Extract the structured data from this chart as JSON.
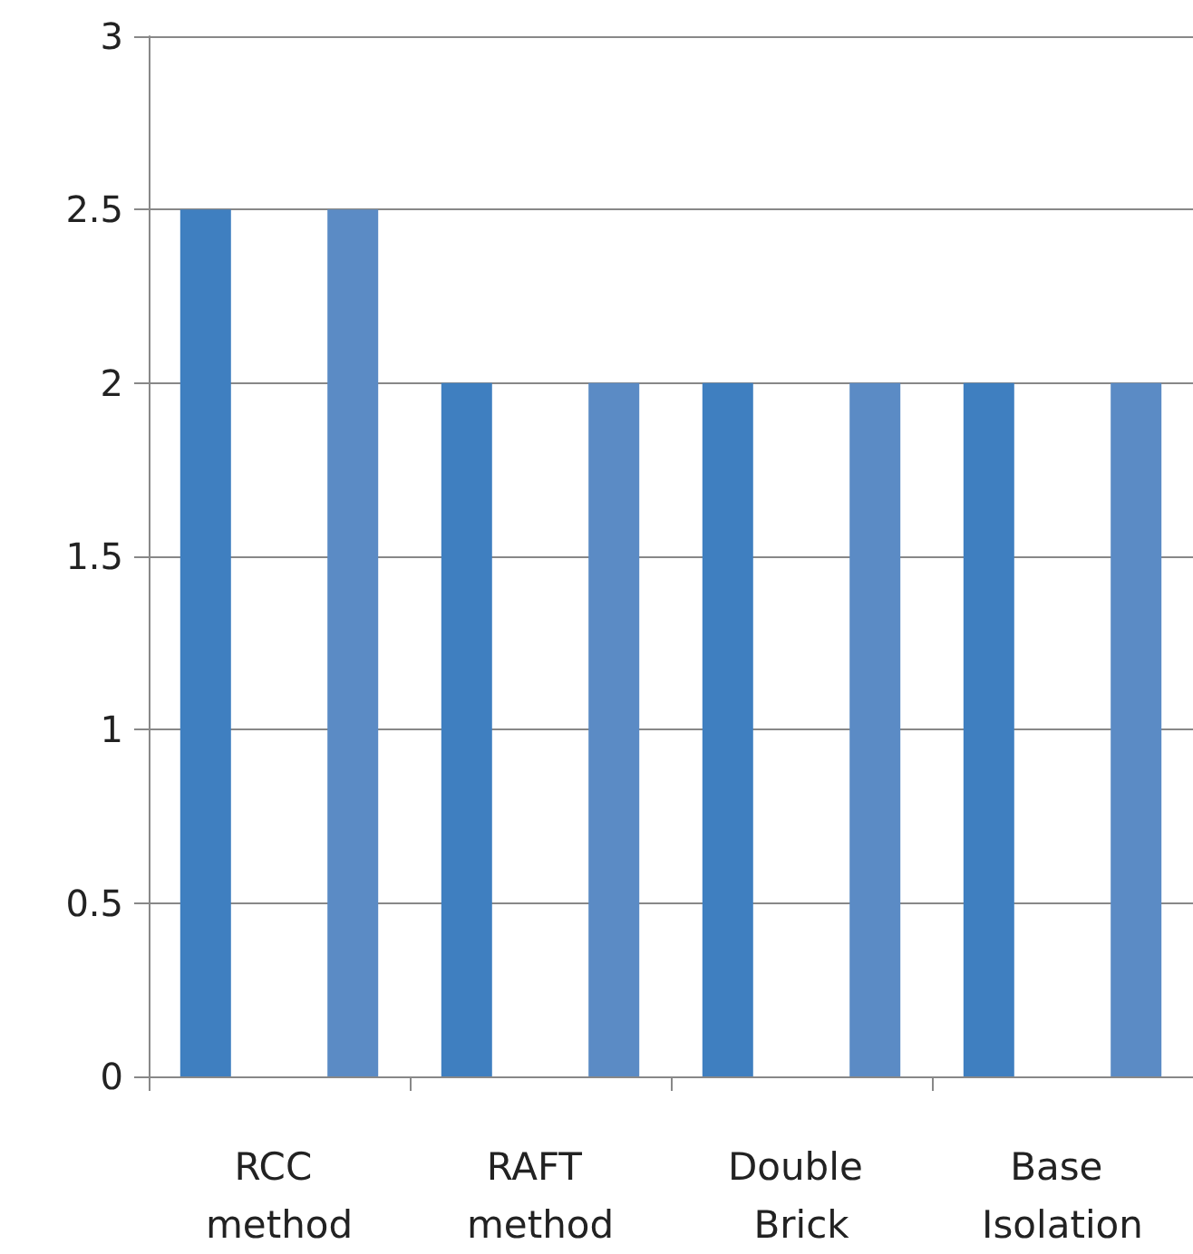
{
  "chart_data": {
    "type": "bar",
    "categories": [
      "RCC method",
      "RAFT method",
      "Double Brick",
      "Base Isolation"
    ],
    "series": [
      {
        "color": "#3f7fc0",
        "values": [
          2.5,
          2,
          2,
          2
        ]
      },
      {
        "color": "#5b8bc5",
        "values": [
          2.5,
          2,
          2,
          2
        ]
      }
    ],
    "ylim": [
      0,
      3
    ],
    "yticks": [
      0,
      0.5,
      1,
      1.5,
      2,
      2.5,
      3
    ],
    "grid": "y"
  }
}
